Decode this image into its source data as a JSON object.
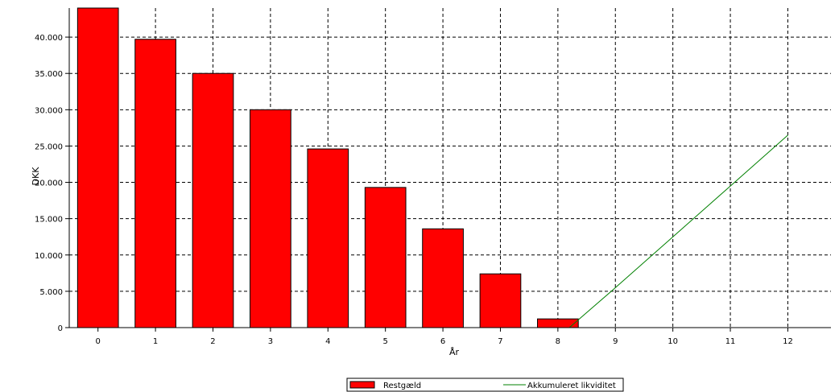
{
  "chart_data": {
    "type": "bar",
    "xlabel": "År",
    "ylabel": "DKK",
    "ylim": [
      0,
      44000
    ],
    "yticks": [
      0,
      5000,
      10000,
      15000,
      20000,
      25000,
      30000,
      35000,
      40000
    ],
    "ytick_labels": [
      "0",
      "5.000",
      "10.000",
      "15.000",
      "20.000",
      "25.000",
      "30.000",
      "35.000",
      "40.000"
    ],
    "categories": [
      "0",
      "1",
      "2",
      "3",
      "4",
      "5",
      "6",
      "7",
      "8",
      "9",
      "10",
      "11",
      "12"
    ],
    "grid": true,
    "legend_position": "bottom-center",
    "series": [
      {
        "name": "Restgæld",
        "type": "bar",
        "color": "#ff0000",
        "x": [
          0,
          1,
          2,
          3,
          4,
          5,
          6,
          7,
          8
        ],
        "values": [
          44500,
          39700,
          35000,
          30000,
          24600,
          19300,
          13600,
          7400,
          1200
        ]
      },
      {
        "name": "Akkumuleret likviditet",
        "type": "line",
        "color": "#008000",
        "x": [
          8.2,
          9,
          10,
          11,
          12
        ],
        "values": [
          0,
          5500,
          12500,
          19500,
          26500
        ]
      }
    ]
  }
}
